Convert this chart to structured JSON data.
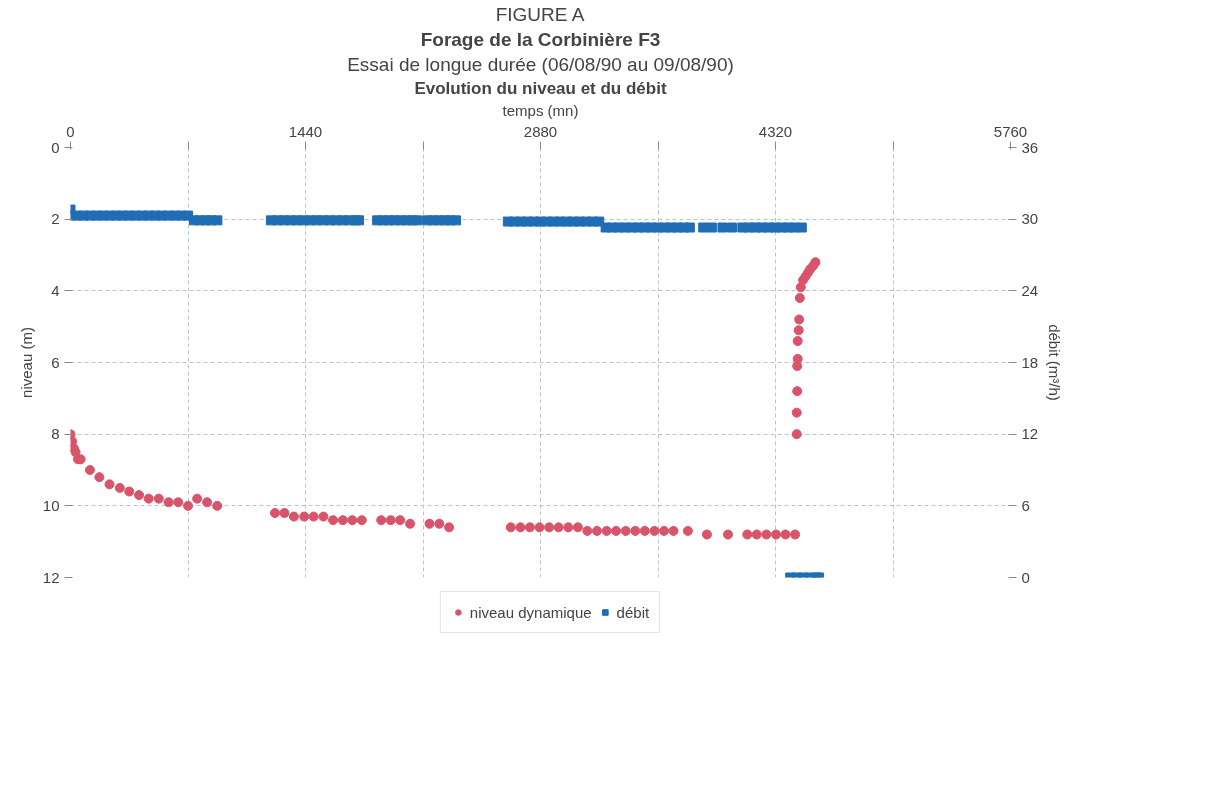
{
  "chart_data": {
    "type": "scatter",
    "title": "Forage de la Corbinière F3",
    "subtitle": "Essai de longue durée (06/08/90 au 09/08/90)",
    "annotations": [
      "FIGURE A",
      "Evolution du niveau et du débit"
    ],
    "xlabel": "temps (mn)",
    "ylabel": "niveau (m)",
    "y2label": "débit (m³/h)",
    "xlim": [
      0,
      5760
    ],
    "xticks": [
      0,
      {
        "value": 720,
        "label": null
      },
      1440,
      {
        "value": 2160,
        "label": null
      },
      2880,
      {
        "value": 3600,
        "label": null
      },
      4320,
      {
        "value": 5040,
        "label": null
      },
      5760
    ],
    "ylim": [
      12,
      0
    ],
    "yticks": [
      0,
      2,
      4,
      6,
      8,
      10,
      12
    ],
    "y2lim": [
      0,
      36
    ],
    "y2ticks": [
      0,
      6,
      12,
      18,
      24,
      30,
      36
    ],
    "grid": true,
    "legend": "bottom",
    "series": [
      {
        "name": "niveau dynamique",
        "color": "#d9546a",
        "marker": "circle",
        "x": [
          0,
          10,
          21,
          31,
          46,
          62,
          119,
          177,
          239,
          302,
          360,
          420,
          479,
          541,
          601,
          660,
          720,
          776,
          837,
          899,
          1253,
          1311,
          1369,
          1432,
          1490,
          1550,
          1609,
          1669,
          1727,
          1785,
          1904,
          1962,
          2020,
          2081,
          2200,
          2260,
          2320,
          2698,
          2757,
          2815,
          2874,
          2933,
          2991,
          3050,
          3109,
          3167,
          3226,
          3285,
          3343,
          3402,
          3461,
          3519,
          3578,
          3637,
          3695,
          3783,
          3900,
          4029,
          4147,
          4205,
          4264,
          4323,
          4381,
          4440,
          4450,
          4450,
          4453,
          4453,
          4456,
          4456,
          4462,
          4465,
          4469,
          4475,
          4489,
          4504,
          4518,
          4532,
          4551,
          4565
        ],
        "values": [
          8.0,
          8.2,
          8.4,
          8.5,
          8.7,
          8.7,
          9.0,
          9.2,
          9.4,
          9.5,
          9.6,
          9.7,
          9.8,
          9.8,
          9.9,
          9.9,
          10.0,
          9.8,
          9.9,
          10.0,
          10.2,
          10.2,
          10.3,
          10.3,
          10.3,
          10.3,
          10.4,
          10.4,
          10.4,
          10.4,
          10.4,
          10.4,
          10.4,
          10.5,
          10.5,
          10.5,
          10.6,
          10.6,
          10.6,
          10.6,
          10.6,
          10.6,
          10.6,
          10.6,
          10.6,
          10.7,
          10.7,
          10.7,
          10.7,
          10.7,
          10.7,
          10.7,
          10.7,
          10.7,
          10.7,
          10.7,
          10.8,
          10.8,
          10.8,
          10.8,
          10.8,
          10.8,
          10.8,
          10.8,
          8.0,
          7.4,
          6.8,
          6.1,
          5.9,
          5.4,
          5.1,
          4.8,
          4.2,
          3.9,
          3.7,
          3.6,
          3.5,
          3.4,
          3.3,
          3.2
        ]
      },
      {
        "name": "débit",
        "color": "#1f6db5",
        "marker": "square",
        "axis": "y2",
        "x": [
          0,
          0,
          40,
          80,
          120,
          160,
          200,
          240,
          280,
          320,
          360,
          400,
          440,
          480,
          520,
          560,
          600,
          640,
          680,
          720,
          756,
          792,
          828,
          864,
          900,
          1228,
          1268,
          1308,
          1348,
          1388,
          1428,
          1468,
          1508,
          1548,
          1588,
          1628,
          1668,
          1708,
          1748,
          1768,
          1879,
          1915,
          1951,
          1987,
          2023,
          2059,
          2095,
          2123,
          2185,
          2221,
          2257,
          2293,
          2329,
          2362,
          2680,
          2720,
          2760,
          2800,
          2840,
          2880,
          2920,
          2960,
          3000,
          3040,
          3080,
          3120,
          3160,
          3200,
          3240,
          3279,
          3319,
          3359,
          3399,
          3439,
          3479,
          3519,
          3559,
          3599,
          3639,
          3679,
          3719,
          3759,
          3795,
          3877,
          3930,
          3995,
          4053,
          4117,
          4157,
          4197,
          4237,
          4277,
          4317,
          4357,
          4397,
          4437,
          4481,
          4410,
          4450,
          4490,
          4530,
          4570,
          4587
        ],
        "values": [
          30.8,
          30.3,
          30.3,
          30.3,
          30.3,
          30.3,
          30.3,
          30.3,
          30.3,
          30.3,
          30.3,
          30.3,
          30.3,
          30.3,
          30.3,
          30.3,
          30.3,
          30.3,
          30.3,
          30.3,
          29.9,
          29.9,
          29.9,
          29.9,
          29.9,
          29.9,
          29.9,
          29.9,
          29.9,
          29.9,
          29.9,
          29.9,
          29.9,
          29.9,
          29.9,
          29.9,
          29.9,
          29.9,
          29.9,
          29.9,
          29.9,
          29.9,
          29.9,
          29.9,
          29.9,
          29.9,
          29.9,
          29.9,
          29.9,
          29.9,
          29.9,
          29.9,
          29.9,
          29.9,
          29.8,
          29.8,
          29.8,
          29.8,
          29.8,
          29.8,
          29.8,
          29.8,
          29.8,
          29.8,
          29.8,
          29.8,
          29.8,
          29.8,
          29.8,
          29.3,
          29.3,
          29.3,
          29.3,
          29.3,
          29.3,
          29.3,
          29.3,
          29.3,
          29.3,
          29.3,
          29.3,
          29.3,
          29.3,
          29.3,
          29.3,
          29.3,
          29.3,
          29.3,
          29.3,
          29.3,
          29.3,
          29.3,
          29.3,
          29.3,
          29.3,
          29.3,
          29.3,
          0,
          0,
          0,
          0,
          0,
          0
        ]
      }
    ]
  }
}
